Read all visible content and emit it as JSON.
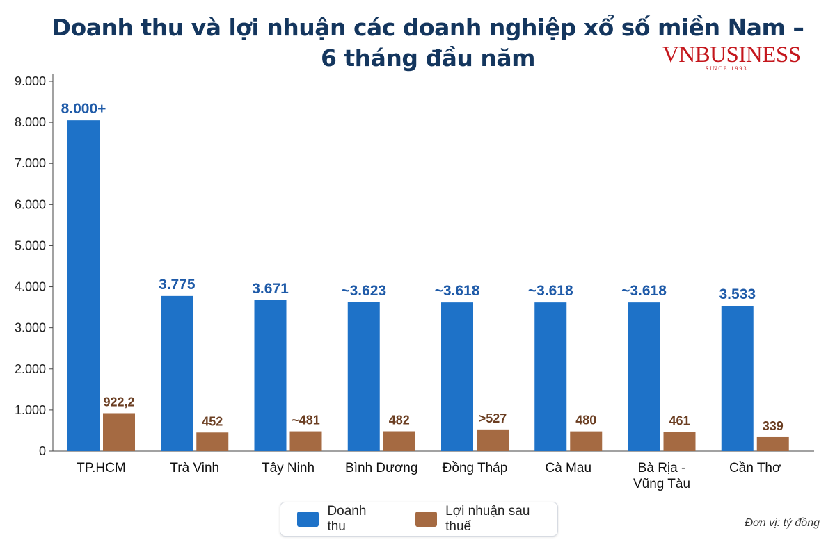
{
  "header": {
    "title_line1": "Doanh thu và lợi nhuận các doanh nghiệp xổ số miền Nam –",
    "title_line2": "6 tháng đầu năm"
  },
  "brand": {
    "name": "VNBUSINESS",
    "tagline": "SINCE 1993",
    "color": "#c4161c"
  },
  "footer": {
    "unit_note": "Đơn vị: tỷ đồng"
  },
  "chart_data": {
    "type": "bar",
    "categories": [
      "TP.HCM",
      "Trà Vinh",
      "Tây Ninh",
      "Bình Dương",
      "Đồng Tháp",
      "Cà Mau",
      "Bà Rịa - Vũng Tàu",
      "Cần Thơ"
    ],
    "category_lines": [
      [
        "TP.HCM"
      ],
      [
        "Trà Vinh"
      ],
      [
        "Tây Ninh"
      ],
      [
        "Bình Dương"
      ],
      [
        "Đồng Tháp"
      ],
      [
        "Cà Mau"
      ],
      [
        "Bà Rịa -",
        "Vũng Tàu"
      ],
      [
        "Cần Thơ"
      ]
    ],
    "series": [
      {
        "name": "Doanh thu",
        "color": "#1e72c8",
        "label_color": "#1e5aa8",
        "values": [
          8050,
          3775,
          3671,
          3623,
          3618,
          3618,
          3618,
          3533
        ],
        "labels": [
          "8.000+",
          "3.775",
          "3.671",
          "~3.623",
          "~3.618",
          "~3.618",
          "~3.618",
          "3.533"
        ]
      },
      {
        "name": "Lợi nhuận sau thuế",
        "color": "#a56a42",
        "label_color": "#6b3e22",
        "values": [
          922.2,
          452,
          481,
          482,
          527,
          480,
          461,
          339
        ],
        "labels": [
          "922,2",
          "452",
          "~481",
          "482",
          ">527",
          "480",
          "461",
          "339"
        ]
      }
    ],
    "y_ticks": [
      "0",
      "1.000",
      "2.000",
      "3.000",
      "4.000",
      "5.000",
      "6.000",
      "7.000",
      "8.000",
      "9.000"
    ],
    "ylim": [
      0,
      9000
    ],
    "xlabel": "",
    "ylabel": "",
    "grid": false,
    "legend_position": "bottom-center"
  }
}
